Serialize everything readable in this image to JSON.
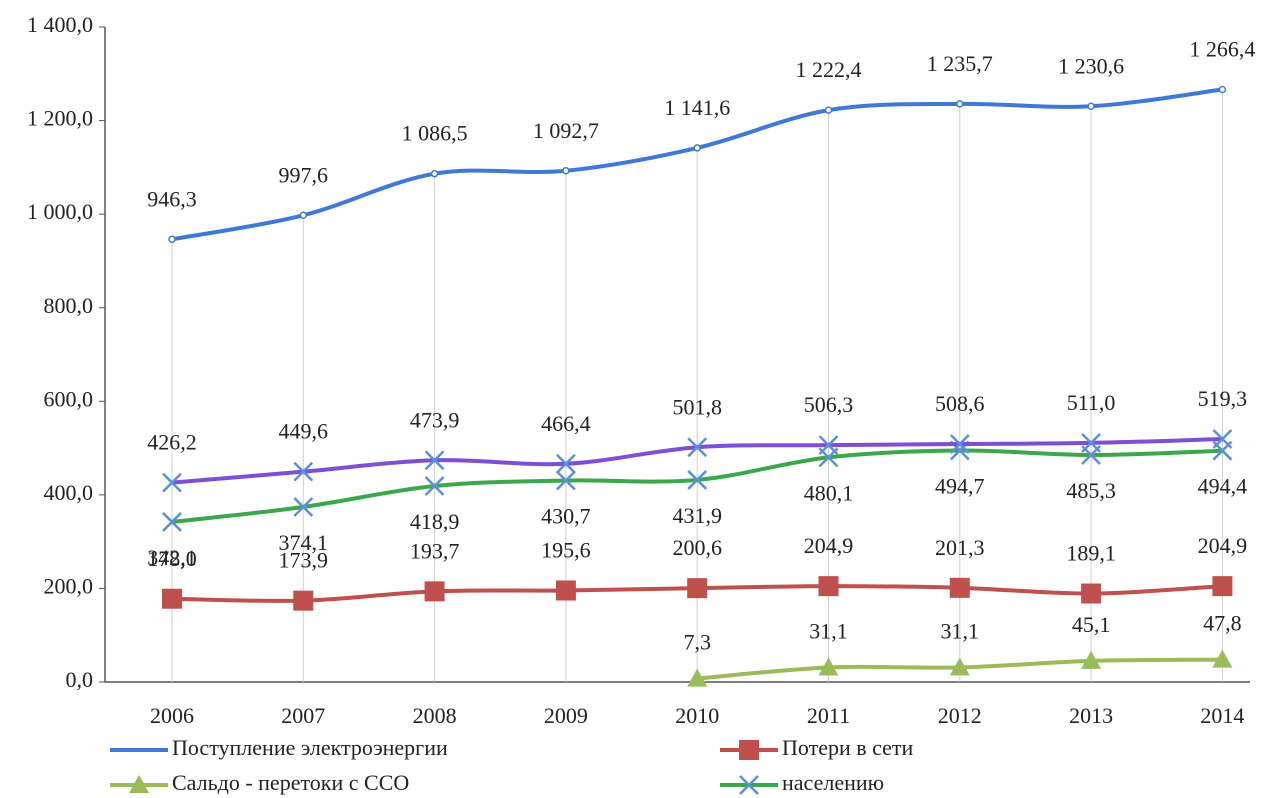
{
  "chart_data": {
    "type": "line",
    "categories": [
      "2006",
      "2007",
      "2008",
      "2009",
      "2010",
      "2011",
      "2012",
      "2013",
      "2014"
    ],
    "ylim": [
      0,
      1400
    ],
    "yticks": [
      {
        "value": 0,
        "label": "0,0"
      },
      {
        "value": 200,
        "label": "200,0"
      },
      {
        "value": 400,
        "label": "400,0"
      },
      {
        "value": 600,
        "label": "600,0"
      },
      {
        "value": 800,
        "label": "800,0"
      },
      {
        "value": 1000,
        "label": "1 000,0"
      },
      {
        "value": 1200,
        "label": "1 200,0"
      },
      {
        "value": 1400,
        "label": "1 400,0"
      }
    ],
    "series": [
      {
        "name": "Поступление электроэнергии",
        "color": "#3f78d8",
        "marker": "circle",
        "values": [
          946.3,
          997.6,
          1086.5,
          1092.7,
          1141.6,
          1222.4,
          1235.7,
          1230.6,
          1266.4
        ],
        "value_labels": [
          "946,3",
          "997,6",
          "1 086,5",
          "1 092,7",
          "1 141,6",
          "1 222,4",
          "1 235,7",
          "1 230,6",
          "1 266,4"
        ]
      },
      {
        "name": "Потери в сети",
        "color": "#c0504d",
        "marker": "square",
        "values": [
          178.0,
          173.9,
          193.7,
          195.6,
          200.6,
          204.9,
          201.3,
          189.1,
          204.9
        ],
        "value_labels": [
          "178,0",
          "173,9",
          "193,7",
          "195,6",
          "200,6",
          "204,9",
          "201,3",
          "189,1",
          "204,9"
        ]
      },
      {
        "name": "Сальдо - перетоки с ССО",
        "color": "#9bbb59",
        "marker": "triangle",
        "values": [
          null,
          null,
          null,
          null,
          7.3,
          31.1,
          31.1,
          45.1,
          47.8
        ],
        "value_labels": [
          null,
          null,
          null,
          null,
          "7,3",
          "31,1",
          "31,1",
          "45,1",
          "47,8"
        ]
      },
      {
        "name": "населению",
        "color": "#3aa84a",
        "marker": "x",
        "values": [
          342.1,
          374.1,
          418.9,
          430.7,
          431.9,
          480.1,
          494.7,
          485.3,
          494.4
        ],
        "value_labels": [
          "342,1",
          "374,1",
          "418,9",
          "430,7",
          "431,9",
          "480,1",
          "494,7",
          "485,3",
          "494,4"
        ]
      },
      {
        "color": "#7d4fd6",
        "marker": "x",
        "values": [
          426.2,
          449.6,
          473.9,
          466.4,
          501.8,
          506.3,
          508.6,
          511.0,
          519.3
        ],
        "value_labels": [
          "426,2",
          "449,6",
          "473,9",
          "466,4",
          "501,8",
          "506,3",
          "508,6",
          "511,0",
          "519,3"
        ]
      }
    ]
  }
}
